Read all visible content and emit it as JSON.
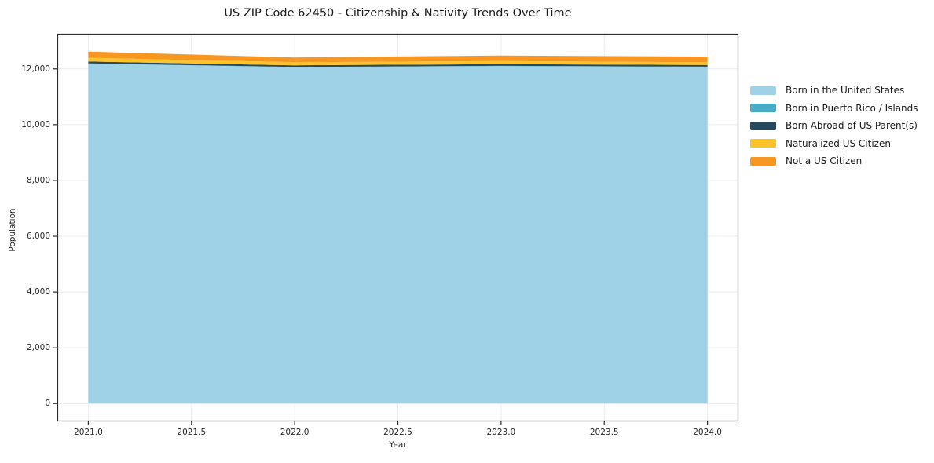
{
  "title": "US ZIP Code 62450 - Citizenship & Nativity Trends Over Time",
  "chart_data": {
    "type": "area",
    "stacked": true,
    "x": [
      2021,
      2022,
      2023,
      2024
    ],
    "series": [
      {
        "name": "Born in the United States",
        "color": "#9fd1e7",
        "values": [
          12190,
          12060,
          12100,
          12070
        ]
      },
      {
        "name": "Born in Puerto Rico / Islands",
        "color": "#45adc5",
        "values": [
          10,
          10,
          10,
          10
        ]
      },
      {
        "name": "Born Abroad of US Parent(s)",
        "color": "#254a5e",
        "values": [
          65,
          60,
          60,
          60
        ]
      },
      {
        "name": "Naturalized US Citizen",
        "color": "#fdc32b",
        "values": [
          135,
          110,
          115,
          100
        ]
      },
      {
        "name": "Not a US Citizen",
        "color": "#f79621",
        "values": [
          220,
          170,
          195,
          200
        ]
      }
    ],
    "xlabel": "Year",
    "ylabel": "Population",
    "xlim": [
      2020.85,
      2024.15
    ],
    "ylim": [
      -640,
      13260
    ],
    "xticks": {
      "values": [
        2021.0,
        2021.5,
        2022.0,
        2022.5,
        2023.0,
        2023.5,
        2024.0
      ],
      "labels": [
        "2021.0",
        "2021.5",
        "2022.0",
        "2022.5",
        "2023.0",
        "2023.5",
        "2024.0"
      ]
    },
    "yticks": {
      "values": [
        0,
        2000,
        4000,
        6000,
        8000,
        10000,
        12000
      ],
      "labels": [
        "0",
        "2,000",
        "4,000",
        "6,000",
        "8,000",
        "10,000",
        "12,000"
      ]
    },
    "grid": true,
    "legend_position": "right-outside",
    "colors": {
      "grid": "#ececec",
      "spine": "#2b2b2b",
      "background": "#ffffff"
    }
  }
}
